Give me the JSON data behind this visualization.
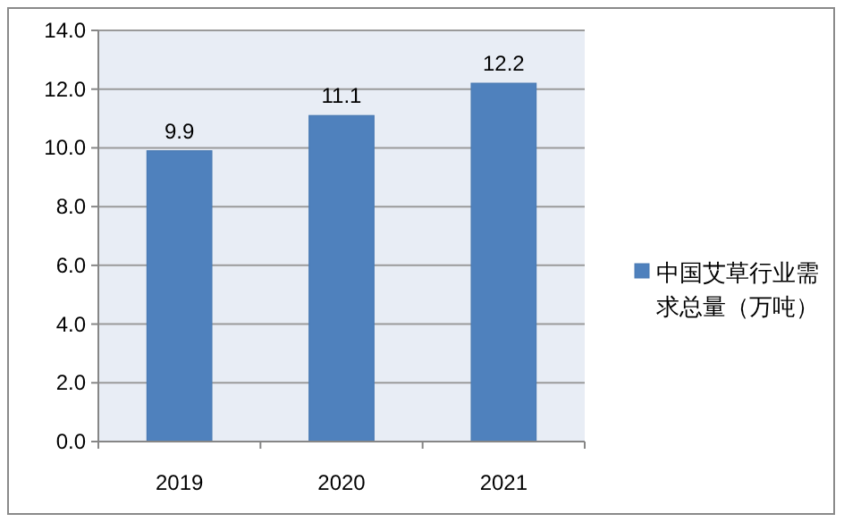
{
  "chart_data": {
    "type": "bar",
    "categories": [
      "2019",
      "2020",
      "2021"
    ],
    "series": [
      {
        "name": "中国艾草行业需求总量（万吨）",
        "color": "#4f81bd",
        "values": [
          9.9,
          11.1,
          12.2
        ]
      }
    ],
    "ylim": [
      0,
      14
    ],
    "yticks": [
      {
        "value": 0,
        "label": "0.0"
      },
      {
        "value": 2,
        "label": "2.0"
      },
      {
        "value": 4,
        "label": "4.0"
      },
      {
        "value": 6,
        "label": "6.0"
      },
      {
        "value": 8,
        "label": "8.0"
      },
      {
        "value": 10,
        "label": "10.0"
      },
      {
        "value": 12,
        "label": "12.0"
      },
      {
        "value": 14,
        "label": "14.0"
      }
    ],
    "grid": "y",
    "legend": "right",
    "data_labels": true
  }
}
